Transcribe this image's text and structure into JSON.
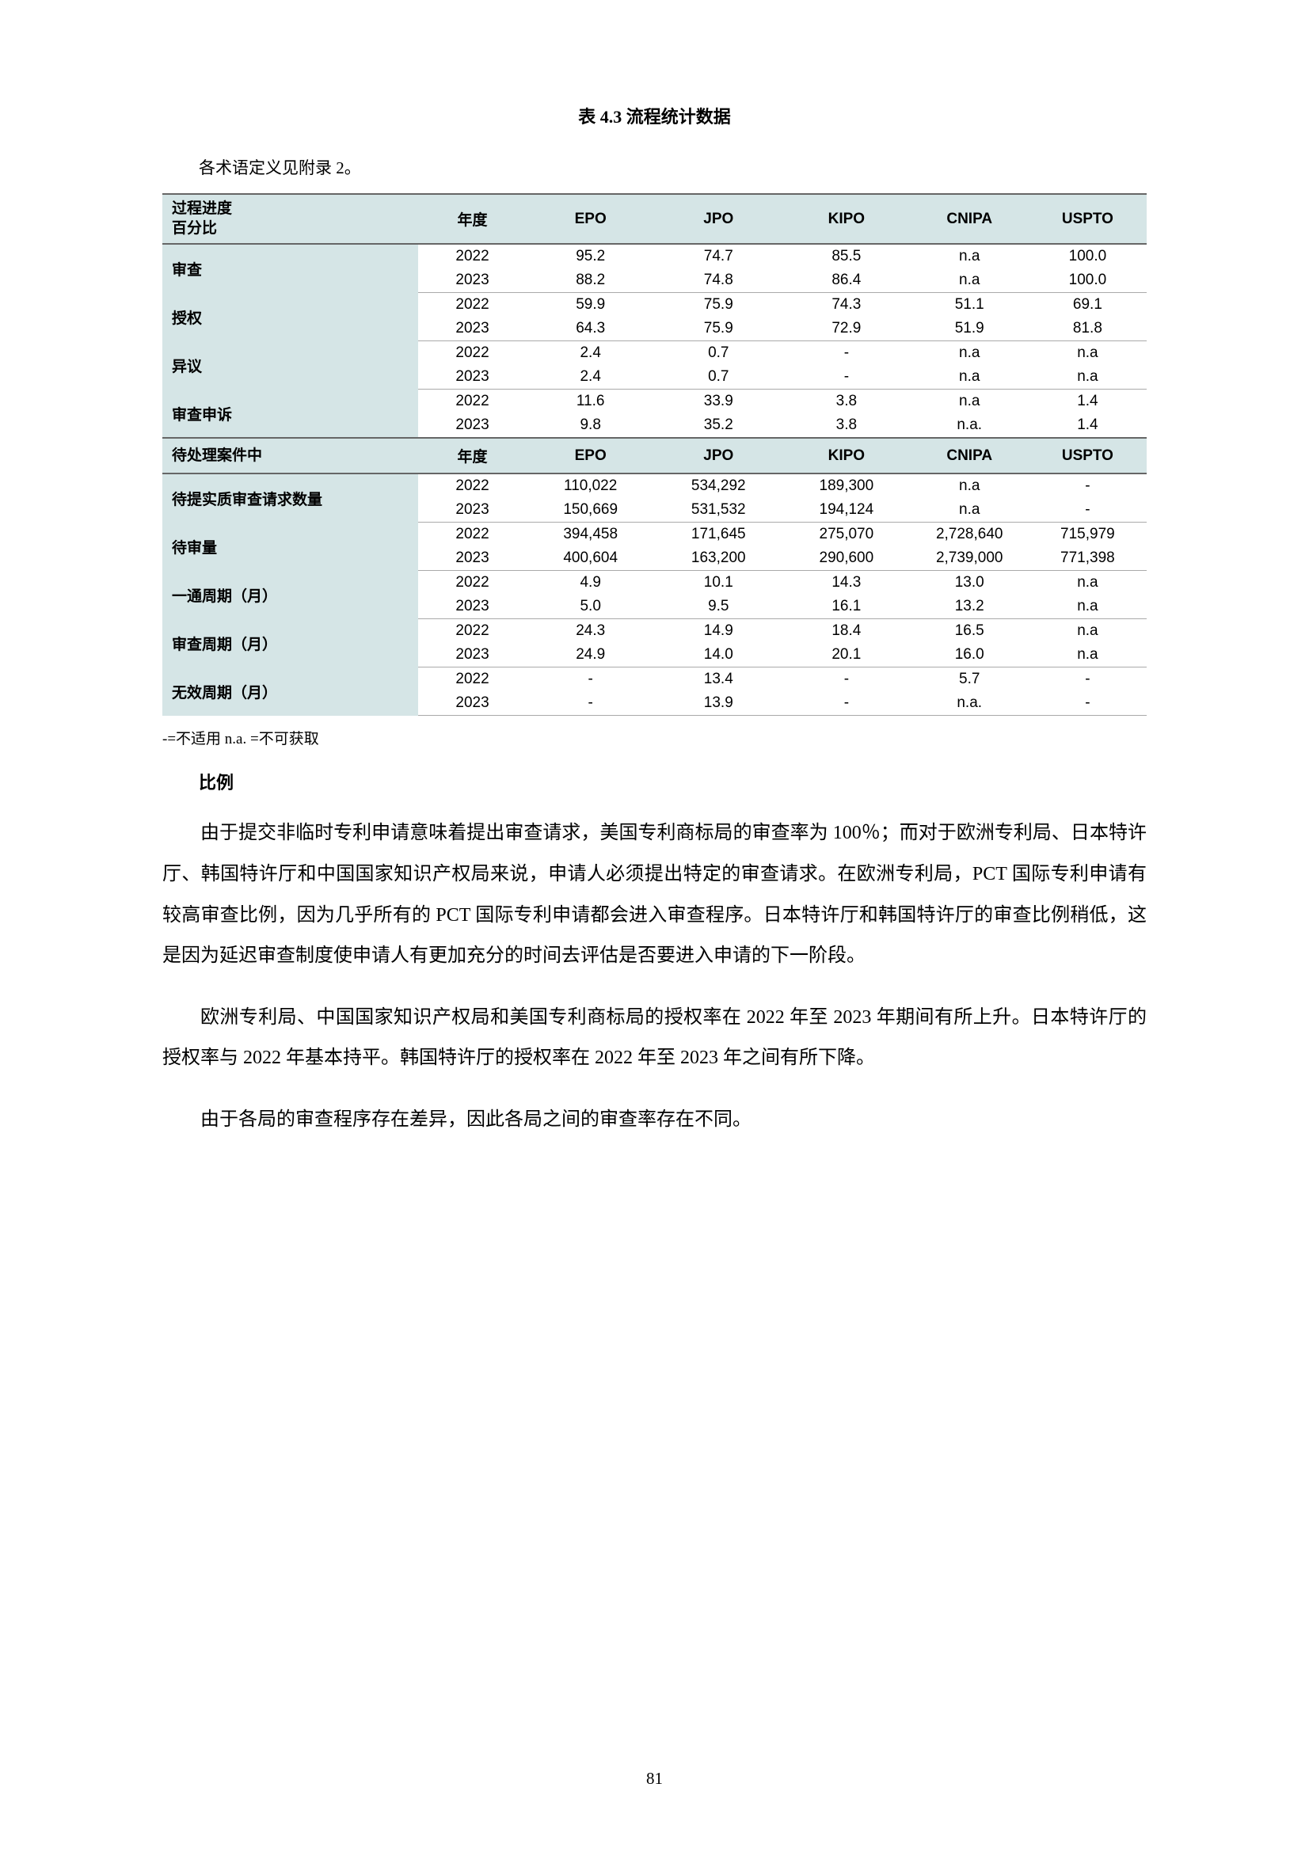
{
  "caption": "表 4.3 流程统计数据",
  "intro": "各术语定义见附录 2。",
  "columns": {
    "year": "年度",
    "epo": "EPO",
    "jpo": "JPO",
    "kipo": "KIPO",
    "cnipa": "CNIPA",
    "uspto": "USPTO"
  },
  "section1_header": "过程进度\n百分比",
  "section2_header": "待处理案件中",
  "section1": [
    {
      "label": "审查",
      "rows": [
        {
          "year": "2022",
          "epo": "95.2",
          "jpo": "74.7",
          "kipo": "85.5",
          "cnipa": "n.a",
          "uspto": "100.0"
        },
        {
          "year": "2023",
          "epo": "88.2",
          "jpo": "74.8",
          "kipo": "86.4",
          "cnipa": "n.a",
          "uspto": "100.0"
        }
      ]
    },
    {
      "label": "授权",
      "rows": [
        {
          "year": "2022",
          "epo": "59.9",
          "jpo": "75.9",
          "kipo": "74.3",
          "cnipa": "51.1",
          "uspto": "69.1"
        },
        {
          "year": "2023",
          "epo": "64.3",
          "jpo": "75.9",
          "kipo": "72.9",
          "cnipa": "51.9",
          "uspto": "81.8"
        }
      ]
    },
    {
      "label": "异议",
      "rows": [
        {
          "year": "2022",
          "epo": "2.4",
          "jpo": "0.7",
          "kipo": "-",
          "cnipa": "n.a",
          "uspto": "n.a"
        },
        {
          "year": "2023",
          "epo": "2.4",
          "jpo": "0.7",
          "kipo": "-",
          "cnipa": "n.a",
          "uspto": "n.a"
        }
      ]
    },
    {
      "label": "审查申诉",
      "rows": [
        {
          "year": "2022",
          "epo": "11.6",
          "jpo": "33.9",
          "kipo": "3.8",
          "cnipa": "n.a",
          "uspto": "1.4"
        },
        {
          "year": "2023",
          "epo": "9.8",
          "jpo": "35.2",
          "kipo": "3.8",
          "cnipa": "n.a.",
          "uspto": "1.4"
        }
      ]
    }
  ],
  "section2": [
    {
      "label": "待提实质审查请求数量",
      "rows": [
        {
          "year": "2022",
          "epo": "110,022",
          "jpo": "534,292",
          "kipo": "189,300",
          "cnipa": "n.a",
          "uspto": "-"
        },
        {
          "year": "2023",
          "epo": "150,669",
          "jpo": "531,532",
          "kipo": "194,124",
          "cnipa": "n.a",
          "uspto": "-"
        }
      ]
    },
    {
      "label": "待审量",
      "rows": [
        {
          "year": "2022",
          "epo": "394,458",
          "jpo": "171,645",
          "kipo": "275,070",
          "cnipa": "2,728,640",
          "uspto": "715,979"
        },
        {
          "year": "2023",
          "epo": "400,604",
          "jpo": "163,200",
          "kipo": "290,600",
          "cnipa": "2,739,000",
          "uspto": "771,398"
        }
      ]
    },
    {
      "label": "一通周期（月）",
      "rows": [
        {
          "year": "2022",
          "epo": "4.9",
          "jpo": "10.1",
          "kipo": "14.3",
          "cnipa": "13.0",
          "uspto": "n.a"
        },
        {
          "year": "2023",
          "epo": "5.0",
          "jpo": "9.5",
          "kipo": "16.1",
          "cnipa": "13.2",
          "uspto": "n.a"
        }
      ]
    },
    {
      "label": "审查周期（月）",
      "rows": [
        {
          "year": "2022",
          "epo": "24.3",
          "jpo": "14.9",
          "kipo": "18.4",
          "cnipa": "16.5",
          "uspto": "n.a"
        },
        {
          "year": "2023",
          "epo": "24.9",
          "jpo": "14.0",
          "kipo": "20.1",
          "cnipa": "16.0",
          "uspto": "n.a"
        }
      ]
    },
    {
      "label": "无效周期（月）",
      "rows": [
        {
          "year": "2022",
          "epo": "-",
          "jpo": "13.4",
          "kipo": "-",
          "cnipa": "5.7",
          "uspto": "-"
        },
        {
          "year": "2023",
          "epo": "-",
          "jpo": "13.9",
          "kipo": "-",
          "cnipa": "n.a.",
          "uspto": "-"
        }
      ]
    }
  ],
  "note": "-=不适用 n.a. =不可获取",
  "subhead": "比例",
  "paragraphs": [
    "由于提交非临时专利申请意味着提出审查请求，美国专利商标局的审查率为 100％；而对于欧洲专利局、日本特许厅、韩国特许厅和中国国家知识产权局来说，申请人必须提出特定的审查请求。在欧洲专利局，PCT 国际专利申请有较高审查比例，因为几乎所有的 PCT 国际专利申请都会进入审查程序。日本特许厅和韩国特许厅的审查比例稍低，这是因为延迟审查制度使申请人有更加充分的时间去评估是否要进入申请的下一阶段。",
    "欧洲专利局、中国国家知识产权局和美国专利商标局的授权率在 2022 年至 2023 年期间有所上升。日本特许厅的授权率与 2022 年基本持平。韩国特许厅的授权率在 2022 年至 2023 年之间有所下降。",
    "由于各局的审查程序存在差异，因此各局之间的审查率存在不同。"
  ],
  "page_number": "81",
  "colors": {
    "header_bg": "#d5e5e6",
    "border_dark": "#666666",
    "border_light": "#aaaaaa",
    "text": "#000000",
    "bg": "#ffffff"
  }
}
